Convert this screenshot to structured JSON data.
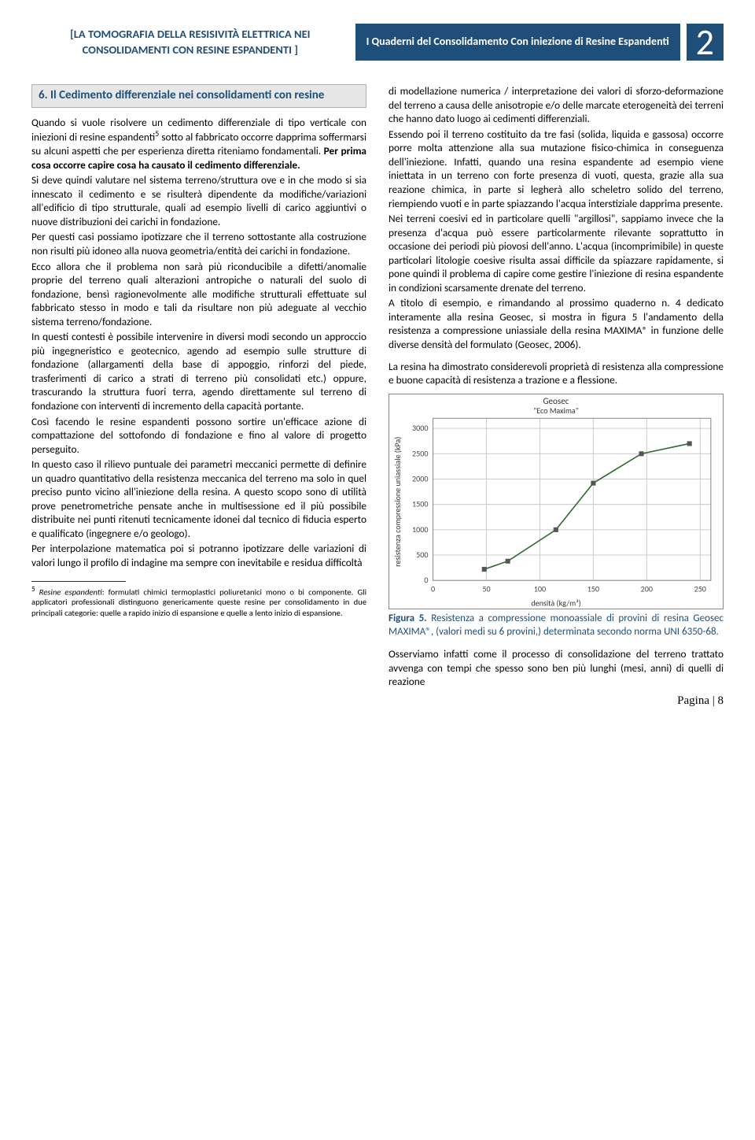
{
  "header": {
    "left": "[LA TOMOGRAFIA DELLA RESISIVITÀ ELETTRICA NEI CONSOLIDAMENTI CON RESINE ESPANDENTI ]",
    "mid": "I Quaderni del Consolidamento Con iniezione di Resine Espandenti",
    "num": "2"
  },
  "section_heading": "6. Il Cedimento differenziale nei consolidamenti con resine",
  "left_col": {
    "p1a": "Quando si vuole risolvere un cedimento differenziale di tipo verticale con iniezioni di resine espandenti",
    "p1b": " sotto al fabbricato occorre dapprima soffermarsi su alcuni aspetti che per esperienza diretta riteniamo fondamentali. ",
    "p1bold": "Per prima cosa occorre capire cosa ha causato il cedimento differenziale.",
    "p2": "Si deve quindi valutare nel sistema terreno/struttura ove e in che modo si sia innescato il cedimento e se risulterà dipendente da modifiche/variazioni all'edificio di tipo strutturale, quali ad esempio livelli di carico aggiuntivi o nuove distribuzioni dei carichi in fondazione.",
    "p3": "Per questi casi possiamo ipotizzare che il terreno sottostante alla costruzione non risulti più idoneo alla nuova geometria/entità dei carichi in fondazione.",
    "p4": "Ecco allora che il problema non sarà più riconducibile a difetti/anomalie proprie del terreno quali alterazioni antropiche o naturali del suolo di fondazione, bensì ragionevolmente alle modifiche strutturali effettuate sul fabbricato stesso in modo e tali da risultare non più adeguate al vecchio sistema terreno/fondazione.",
    "p5": "In questi contesti è possibile intervenire in diversi modi secondo un approccio più ingegneristico e geotecnico, agendo ad esempio sulle strutture di fondazione (allargamenti della base di appoggio, rinforzi del piede, trasferimenti di carico a strati di terreno più consolidati etc.) oppure, trascurando la struttura fuori terra, agendo direttamente sul terreno di fondazione con interventi di incremento della capacità portante.",
    "p6": "Così facendo le resine espandenti possono sortire un'efficace azione di compattazione del sottofondo di fondazione e fino al valore di progetto perseguito.",
    "p7": "In questo caso il rilievo puntuale dei parametri meccanici permette di definire un quadro quantitativo della resistenza meccanica del terreno ma solo in quel preciso punto vicino all'iniezione della resina. A questo scopo sono di utilità prove penetrometriche pensate anche in multisessione ed il più possibile distribuite nei punti ritenuti tecnicamente idonei dal tecnico di fiducia esperto e qualificato (ingegnere e/o geologo).",
    "p8": "Per interpolazione matematica poi si potranno ipotizzare delle variazioni di valori lungo il profilo di indagine ma sempre con inevitabile e residua difficoltà"
  },
  "footnote": {
    "marker": "5",
    "lead_italic": "Resine espandenti",
    "rest": ": formulati chimici termoplastici poliuretanici mono o bi componente. Gli applicatori professionali distinguono genericamente queste resine per consolidamento in due principali categorie: quelle a rapido inizio di espansione e quelle a lento inizio di espansione."
  },
  "right_col": {
    "p1": "di modellazione numerica / interpretazione dei valori di sforzo-deformazione del terreno a causa delle anisotropie e/o delle marcate eterogeneità dei terreni che hanno dato luogo ai cedimenti differenziali.",
    "p2": "Essendo poi il terreno costituito da tre fasi (solida, liquida e gassosa) occorre porre molta attenzione alla sua mutazione fisico-chimica in conseguenza dell'iniezione. Infatti, quando una resina espandente ad esempio viene iniettata in un terreno con forte presenza di vuoti, questa, grazie alla sua reazione chimica, in parte si legherà allo scheletro solido del terreno, riempiendo vuoti e in parte spiazzando l'acqua interstiziale dapprima presente.",
    "p3": "Nei terreni coesivi ed in particolare quelli \"argillosi\", sappiamo invece che la presenza d'acqua può essere particolarmente rilevante soprattutto in occasione dei periodi più piovosi dell'anno. L'acqua (incomprimibile) in queste particolari litologie coesive risulta assai difficile da spiazzare rapidamente, si pone quindi il problema di capire come gestire l'iniezione di resina espandente in condizioni scarsamente drenate del terreno.",
    "p4": "A titolo di esempio, e rimandando al prossimo quaderno n. 4 dedicato interamente alla resina Geosec, si mostra in figura 5 l'andamento della resistenza a compressione uniassiale della resina MAXIMA® in funzione delle diverse densità del formulato (Geosec, 2006).",
    "p5": "La resina ha dimostrato considerevoli proprietà di resistenza alla compressione e buone capacità di resistenza a trazione e a flessione.",
    "p_last": "Osserviamo infatti come il processo di consolidazione del terreno trattato avvenga con tempi che spesso sono ben più lunghi (mesi, anni) di quelli di reazione"
  },
  "chart": {
    "title": "Geosec",
    "subtitle": "\"Eco Maxima\"",
    "ylabel": "resistenza compressione uniassiale (kPa)",
    "xlabel": "densità (kg/m³)",
    "x_ticks": [
      0,
      50,
      100,
      150,
      200,
      250
    ],
    "y_ticks": [
      0,
      500,
      1000,
      1500,
      2000,
      2500,
      3000
    ],
    "xlim": [
      0,
      260
    ],
    "ylim": [
      0,
      3200
    ],
    "line_color": "#2f6b2f",
    "marker_color": "#555555",
    "grid_color": "#cccccc",
    "bg_color": "#ffffff",
    "marker": "square",
    "series": [
      {
        "x": 48,
        "y": 220
      },
      {
        "x": 70,
        "y": 380
      },
      {
        "x": 115,
        "y": 1000
      },
      {
        "x": 150,
        "y": 1920
      },
      {
        "x": 195,
        "y": 2500
      },
      {
        "x": 240,
        "y": 2700
      }
    ]
  },
  "fig_caption": {
    "lead": "Figura 5.",
    "rest": " Resistenza a compressione monoassiale di provini di resina Geosec MAXIMA®, (valori medi su 6 provini,) determinata secondo norma UNI 6350-68."
  },
  "page_number": "Pagina | 8"
}
